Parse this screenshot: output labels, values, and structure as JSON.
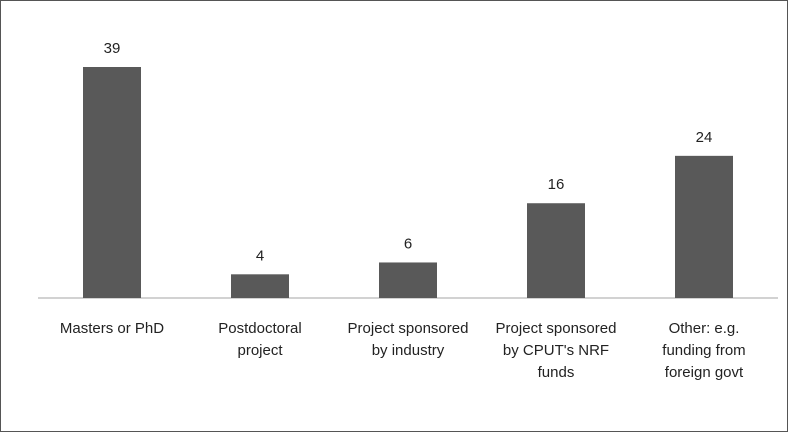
{
  "chart_data": {
    "type": "bar",
    "categories": [
      "Masters or PhD",
      "Postdoctoral project",
      "Project sponsored by industry",
      "Project sponsored by CPUT's NRF funds",
      "Other: e.g. funding from foreign govt"
    ],
    "values": [
      39,
      4,
      6,
      16,
      24
    ],
    "color": "#595959"
  }
}
